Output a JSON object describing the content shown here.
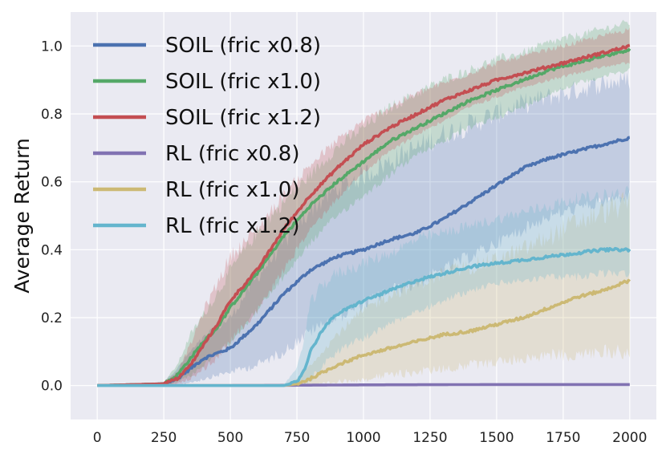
{
  "chart_data": {
    "type": "line",
    "title": "",
    "xlabel": "",
    "ylabel": "Average Return",
    "xlim": [
      -100,
      2100
    ],
    "ylim": [
      -0.1,
      1.1
    ],
    "xticks": [
      0,
      250,
      500,
      750,
      1000,
      1250,
      1500,
      1750,
      2000
    ],
    "xtick_labels": [
      "0",
      "250",
      "500",
      "750",
      "1000",
      "1250",
      "1500",
      "1750",
      "2000"
    ],
    "yticks": [
      0.0,
      0.2,
      0.4,
      0.6,
      0.8,
      1.0
    ],
    "ytick_labels": [
      "0.0",
      "0.2",
      "0.4",
      "0.6",
      "0.8",
      "1.0"
    ],
    "grid": true,
    "legend_position": "top-left",
    "series": [
      {
        "name": "SOIL (fric x0.8)",
        "color": "#4c72b0",
        "x": [
          0,
          250,
          300,
          350,
          400,
          500,
          600,
          700,
          800,
          900,
          1000,
          1100,
          1200,
          1300,
          1400,
          1500,
          1600,
          1700,
          1800,
          1900,
          2000
        ],
        "y": [
          0,
          0.005,
          0.02,
          0.05,
          0.08,
          0.11,
          0.18,
          0.27,
          0.34,
          0.38,
          0.4,
          0.43,
          0.45,
          0.49,
          0.54,
          0.59,
          0.64,
          0.67,
          0.69,
          0.71,
          0.73
        ],
        "band_upper": [
          0,
          0.01,
          0.05,
          0.1,
          0.14,
          0.2,
          0.32,
          0.42,
          0.52,
          0.58,
          0.62,
          0.66,
          0.7,
          0.74,
          0.77,
          0.8,
          0.83,
          0.85,
          0.87,
          0.89,
          0.9
        ],
        "band_lower": [
          0,
          0,
          0,
          0.01,
          0.02,
          0.04,
          0.06,
          0.1,
          0.16,
          0.2,
          0.24,
          0.28,
          0.3,
          0.34,
          0.38,
          0.42,
          0.46,
          0.5,
          0.52,
          0.54,
          0.56
        ]
      },
      {
        "name": "SOIL (fric x1.0)",
        "color": "#55a868",
        "x": [
          0,
          250,
          300,
          350,
          400,
          450,
          500,
          600,
          700,
          800,
          900,
          1000,
          1100,
          1200,
          1300,
          1400,
          1500,
          1600,
          1700,
          1800,
          1900,
          2000
        ],
        "y": [
          0,
          0.005,
          0.03,
          0.08,
          0.13,
          0.17,
          0.23,
          0.33,
          0.44,
          0.53,
          0.6,
          0.66,
          0.72,
          0.76,
          0.8,
          0.84,
          0.87,
          0.9,
          0.93,
          0.95,
          0.97,
          0.99
        ],
        "band_upper": [
          0,
          0.01,
          0.06,
          0.15,
          0.21,
          0.27,
          0.34,
          0.45,
          0.54,
          0.62,
          0.7,
          0.76,
          0.82,
          0.86,
          0.9,
          0.93,
          0.96,
          0.98,
          1.01,
          1.03,
          1.05,
          1.07
        ],
        "band_lower": [
          0,
          0,
          0.01,
          0.03,
          0.06,
          0.09,
          0.13,
          0.22,
          0.32,
          0.42,
          0.5,
          0.56,
          0.62,
          0.68,
          0.72,
          0.76,
          0.79,
          0.82,
          0.86,
          0.89,
          0.91,
          0.93
        ]
      },
      {
        "name": "SOIL (fric x1.2)",
        "color": "#c44e52",
        "x": [
          0,
          250,
          300,
          350,
          400,
          450,
          500,
          600,
          700,
          800,
          900,
          1000,
          1100,
          1200,
          1300,
          1400,
          1500,
          1600,
          1700,
          1800,
          1900,
          2000
        ],
        "y": [
          0,
          0.005,
          0.02,
          0.06,
          0.12,
          0.18,
          0.25,
          0.34,
          0.46,
          0.56,
          0.64,
          0.71,
          0.76,
          0.8,
          0.84,
          0.87,
          0.9,
          0.92,
          0.94,
          0.96,
          0.98,
          1.0
        ],
        "band_upper": [
          0,
          0.01,
          0.04,
          0.12,
          0.22,
          0.3,
          0.38,
          0.46,
          0.56,
          0.65,
          0.72,
          0.78,
          0.82,
          0.86,
          0.89,
          0.92,
          0.95,
          0.97,
          0.99,
          1.01,
          1.03,
          1.05
        ],
        "band_lower": [
          0,
          0,
          0.005,
          0.02,
          0.05,
          0.08,
          0.13,
          0.22,
          0.34,
          0.46,
          0.55,
          0.63,
          0.69,
          0.74,
          0.78,
          0.82,
          0.85,
          0.88,
          0.9,
          0.92,
          0.94,
          0.95
        ]
      },
      {
        "name": "RL (fric x0.8)",
        "color": "#8172b2",
        "x": [
          0,
          500,
          1000,
          1500,
          2000
        ],
        "y": [
          0,
          0.0,
          0.002,
          0.003,
          0.003
        ],
        "band_upper": [
          0,
          0.001,
          0.004,
          0.005,
          0.005
        ],
        "band_lower": [
          0,
          0,
          0,
          0,
          0
        ]
      },
      {
        "name": "RL (fric x1.0)",
        "color": "#ccb974",
        "x": [
          0,
          700,
          750,
          800,
          900,
          1000,
          1100,
          1200,
          1300,
          1400,
          1500,
          1600,
          1700,
          1800,
          1900,
          2000
        ],
        "y": [
          0,
          0.0,
          0.005,
          0.02,
          0.06,
          0.09,
          0.11,
          0.13,
          0.15,
          0.16,
          0.18,
          0.2,
          0.23,
          0.26,
          0.28,
          0.31
        ],
        "band_upper": [
          0,
          0.002,
          0.02,
          0.06,
          0.15,
          0.22,
          0.27,
          0.3,
          0.33,
          0.35,
          0.37,
          0.4,
          0.44,
          0.48,
          0.51,
          0.54
        ],
        "band_lower": [
          0,
          0,
          0,
          0,
          0.01,
          0.02,
          0.03,
          0.04,
          0.05,
          0.06,
          0.07,
          0.08,
          0.09,
          0.09,
          0.1,
          0.1
        ]
      },
      {
        "name": "RL (fric x1.2)",
        "color": "#64b5cd",
        "x": [
          0,
          700,
          750,
          780,
          800,
          850,
          900,
          1000,
          1100,
          1200,
          1300,
          1400,
          1500,
          1600,
          1700,
          1800,
          1900,
          2000
        ],
        "y": [
          0,
          0.0,
          0.01,
          0.05,
          0.1,
          0.17,
          0.21,
          0.25,
          0.28,
          0.31,
          0.33,
          0.35,
          0.36,
          0.37,
          0.38,
          0.39,
          0.4,
          0.4
        ],
        "band_upper": [
          0,
          0.002,
          0.05,
          0.15,
          0.24,
          0.3,
          0.33,
          0.36,
          0.39,
          0.43,
          0.45,
          0.47,
          0.49,
          0.51,
          0.53,
          0.55,
          0.56,
          0.57
        ],
        "band_lower": [
          0,
          0,
          0,
          0.005,
          0.02,
          0.06,
          0.1,
          0.14,
          0.18,
          0.22,
          0.25,
          0.28,
          0.3,
          0.31,
          0.32,
          0.32,
          0.33,
          0.33
        ]
      }
    ]
  }
}
